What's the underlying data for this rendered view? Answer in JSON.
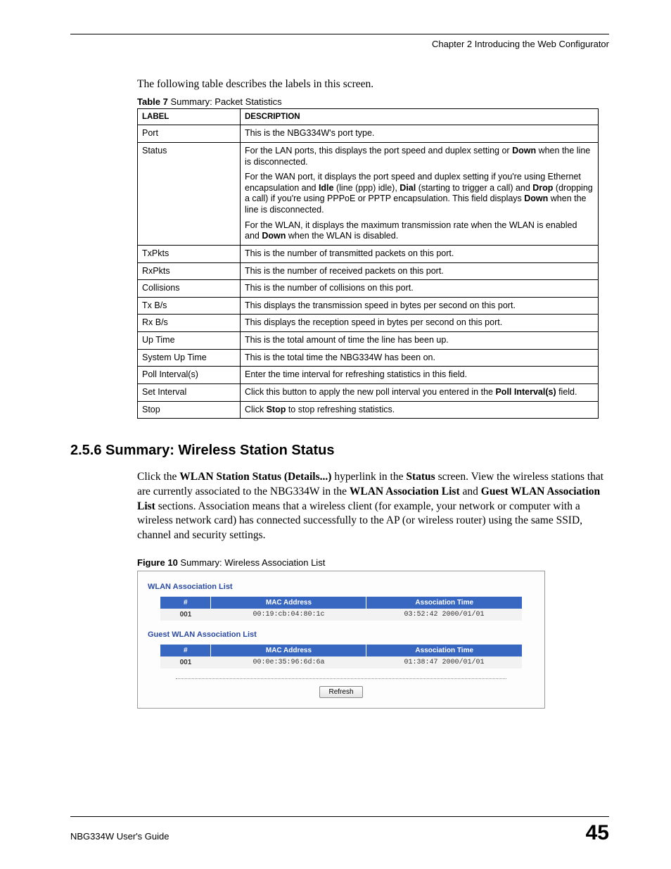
{
  "chapter_line": "Chapter 2 Introducing the Web Configurator",
  "intro_text": "The following table describes the labels in this screen.",
  "table7": {
    "caption_bold": "Table 7",
    "caption_rest": "   Summary: Packet Statistics",
    "header_label": "LABEL",
    "header_desc": "DESCRIPTION",
    "col_label_width": 146,
    "border_color": "#000000",
    "font_family": "Arial",
    "font_size": 12.5,
    "rows": [
      {
        "label": "Port",
        "desc": [
          {
            "type": "plain",
            "text": "This is the NBG334W's port type."
          }
        ]
      },
      {
        "label": "Status",
        "desc": [
          {
            "type": "mixed",
            "parts": [
              {
                "t": "For the LAN ports, this displays the port speed and duplex setting or "
              },
              {
                "b": "Down"
              },
              {
                "t": " when the line is disconnected."
              }
            ]
          },
          {
            "type": "mixed",
            "parts": [
              {
                "t": "For the WAN port, it displays the port speed and duplex setting if you're using Ethernet encapsulation and "
              },
              {
                "b": "Idle"
              },
              {
                "t": " (line (ppp) idle), "
              },
              {
                "b": "Dial"
              },
              {
                "t": " (starting to trigger a call) and "
              },
              {
                "b": "Drop"
              },
              {
                "t": " (dropping a call) if you're using PPPoE or PPTP encapsulation. This field displays "
              },
              {
                "b": "Down"
              },
              {
                "t": " when the line is disconnected."
              }
            ]
          },
          {
            "type": "mixed",
            "parts": [
              {
                "t": "For the WLAN, it displays the maximum transmission rate when the WLAN is enabled and "
              },
              {
                "b": "Down"
              },
              {
                "t": " when the WLAN is disabled."
              }
            ]
          }
        ]
      },
      {
        "label": "TxPkts",
        "desc": [
          {
            "type": "plain",
            "text": "This is the number of transmitted packets on this port."
          }
        ]
      },
      {
        "label": "RxPkts",
        "desc": [
          {
            "type": "plain",
            "text": "This is the number of received packets on this port."
          }
        ]
      },
      {
        "label": "Collisions",
        "desc": [
          {
            "type": "plain",
            "text": "This is the number of collisions on this port."
          }
        ]
      },
      {
        "label": "Tx B/s",
        "desc": [
          {
            "type": "plain",
            "text": "This displays the transmission speed in bytes per second on this port."
          }
        ]
      },
      {
        "label": "Rx B/s",
        "desc": [
          {
            "type": "plain",
            "text": "This displays the reception speed in bytes per second on this port."
          }
        ]
      },
      {
        "label": "Up Time",
        "desc": [
          {
            "type": "plain",
            "text": "This is the total amount of time the line has been up."
          }
        ]
      },
      {
        "label": "System Up Time",
        "desc": [
          {
            "type": "plain",
            "text": "This is the total time the NBG334W has been on."
          }
        ]
      },
      {
        "label": "Poll Interval(s)",
        "desc": [
          {
            "type": "plain",
            "text": "Enter the time interval for refreshing statistics in this field."
          }
        ]
      },
      {
        "label": "Set Interval",
        "desc": [
          {
            "type": "mixed",
            "parts": [
              {
                "t": "Click this button to apply the new poll interval you entered in the "
              },
              {
                "b": "Poll Interval(s)"
              },
              {
                "t": " field."
              }
            ]
          }
        ]
      },
      {
        "label": "Stop",
        "desc": [
          {
            "type": "mixed",
            "parts": [
              {
                "t": "Click "
              },
              {
                "b": "Stop"
              },
              {
                "t": " to stop refreshing statistics."
              }
            ]
          }
        ]
      }
    ]
  },
  "section_heading": "2.5.6  Summary: Wireless Station Status",
  "section_body_parts": [
    {
      "t": "Click the "
    },
    {
      "b": "WLAN Station Status (Details...)"
    },
    {
      "t": " hyperlink in the "
    },
    {
      "b": "Status"
    },
    {
      "t": " screen. View the wireless stations that are currently associated to the NBG334W in the "
    },
    {
      "b": "WLAN Association List"
    },
    {
      "t": " and "
    },
    {
      "b": "Guest WLAN Association List"
    },
    {
      "t": " sections. Association means that a wireless client (for example, your network or computer with a wireless network card) has connected successfully to the AP (or wireless router) using the same SSID, channel and security settings."
    }
  ],
  "figure10": {
    "caption_bold": "Figure 10",
    "caption_rest": "   Summary: Wireless Association List",
    "panel_border": "#9a9a9a",
    "panel_bg": "#fdfdfd",
    "title_color": "#2a4aa3",
    "header_bg": "#3867c2",
    "header_fg": "#ffffff",
    "row_bg": "#f2f2f2",
    "list1_title": "WLAN Association List",
    "list2_title": "Guest WLAN Association List",
    "columns": [
      "#",
      "MAC Address",
      "Association Time"
    ],
    "col_widths": [
      "14%",
      "43%",
      "43%"
    ],
    "list1_rows": [
      {
        "idx": "001",
        "mac": "00:19:cb:04:80:1c",
        "time": "03:52:42 2000/01/01"
      }
    ],
    "list2_rows": [
      {
        "idx": "001",
        "mac": "00:0e:35:96:6d:6a",
        "time": "01:38:47 2000/01/01"
      }
    ],
    "refresh_label": "Refresh"
  },
  "footer": {
    "guide": "NBG334W User's Guide",
    "page": "45"
  }
}
